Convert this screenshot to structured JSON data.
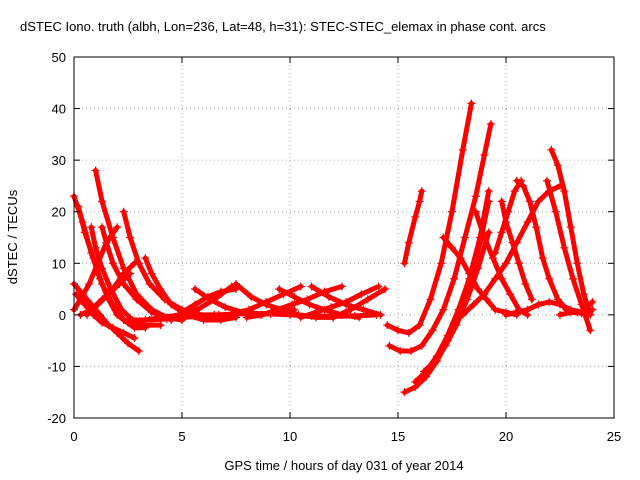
{
  "chart_data": {
    "type": "scatter",
    "title": "dSTEC Iono. truth (albh, Lon=236, Lat=48, h=31): STEC-STEC_elemax in phase cont. arcs",
    "xlabel": "GPS time / hours of day 031 of year 2014",
    "ylabel": "dSTEC  / TECUs",
    "xlim": [
      0,
      25
    ],
    "ylim": [
      -20,
      50
    ],
    "xticks": [
      0,
      5,
      10,
      15,
      20,
      25
    ],
    "yticks": [
      -20,
      -10,
      0,
      10,
      20,
      30,
      40,
      50
    ],
    "grid": true,
    "marker": "plus",
    "series_color": "#ff0000",
    "series": [
      {
        "x": [
          0.0,
          0.4,
          0.8,
          1.2,
          1.6,
          2.0,
          2.5,
          3.0
        ],
        "y": [
          23,
          18,
          12,
          7,
          3,
          0,
          -1.5,
          -2
        ]
      },
      {
        "x": [
          0.0,
          0.4,
          0.8,
          1.2,
          1.6,
          2.0,
          2.5,
          3.0
        ],
        "y": [
          6,
          4,
          2,
          0,
          -2,
          -3.5,
          -5.5,
          -7
        ]
      },
      {
        "x": [
          0.2,
          0.5,
          0.9,
          1.3,
          1.8,
          2.3,
          2.8,
          3.3
        ],
        "y": [
          21,
          16,
          11,
          6,
          2,
          -1,
          -2.5,
          -2.5
        ]
      },
      {
        "x": [
          0.1,
          0.5,
          0.9,
          1.3,
          1.8,
          2.3,
          2.8
        ],
        "y": [
          4,
          2,
          0,
          -1.5,
          -2.5,
          -3.5,
          -4.5
        ]
      },
      {
        "x": [
          0.8,
          1.0,
          1.3,
          1.7,
          2.2,
          2.7,
          3.3,
          4.0
        ],
        "y": [
          17,
          13,
          9,
          5,
          1,
          -1,
          -2,
          -2
        ]
      },
      {
        "x": [
          1.0,
          1.3,
          1.8,
          2.3,
          2.9,
          3.6,
          4.3,
          5.0
        ],
        "y": [
          28,
          22,
          15,
          9,
          4,
          1,
          -0.5,
          -1
        ]
      },
      {
        "x": [
          1.3,
          1.5,
          1.8,
          2.3,
          2.9,
          3.6,
          4.3,
          5.0
        ],
        "y": [
          17,
          14,
          10,
          6,
          3,
          0.5,
          -0.5,
          -1
        ]
      },
      {
        "x": [
          2.3,
          2.6,
          3.0,
          3.5,
          4.2,
          5.0,
          5.8,
          6.5
        ],
        "y": [
          20,
          15,
          10,
          6,
          3,
          1,
          0,
          0
        ]
      },
      {
        "x": [
          3.3,
          3.6,
          4.0,
          4.5,
          5.2,
          6.0,
          6.8,
          7.5
        ],
        "y": [
          11,
          8,
          5,
          2,
          0,
          -1,
          -1,
          -0.5
        ]
      },
      {
        "x": [
          0.0,
          0.3,
          0.7,
          1.1,
          1.5,
          2.0
        ],
        "y": [
          1,
          3,
          6,
          10,
          14,
          17
        ]
      },
      {
        "x": [
          0.3,
          0.8,
          1.3,
          1.8,
          2.3,
          2.8
        ],
        "y": [
          0,
          1,
          3,
          5,
          8,
          10
        ]
      },
      {
        "x": [
          0.6,
          1.1,
          1.6,
          2.1,
          2.6
        ],
        "y": [
          0,
          2,
          4,
          6,
          8
        ]
      },
      {
        "x": [
          2.5,
          3.3,
          4.1,
          4.9,
          5.7,
          6.5,
          7.3
        ],
        "y": [
          -1,
          -1,
          -0.5,
          0,
          1,
          3,
          5.5
        ]
      },
      {
        "x": [
          4.5,
          5.0,
          5.6,
          6.2,
          6.8,
          7.5
        ],
        "y": [
          -1,
          0.5,
          2,
          3.5,
          4.5,
          5
        ]
      },
      {
        "x": [
          5.6,
          6.3,
          7.0,
          7.8,
          8.6,
          9.4,
          10.2
        ],
        "y": [
          5,
          3,
          1.5,
          0.5,
          0,
          0.5,
          1
        ]
      },
      {
        "x": [
          6.5,
          7.3,
          8.1,
          8.9,
          9.7,
          10.5
        ],
        "y": [
          0,
          0,
          1,
          2.5,
          4,
          5.5
        ]
      },
      {
        "x": [
          7.5,
          8.2,
          8.9,
          9.6,
          10.4,
          11.2,
          12.0
        ],
        "y": [
          6,
          3.5,
          2,
          1,
          0,
          -0.5,
          -0.5
        ]
      },
      {
        "x": [
          8.0,
          8.7,
          9.4,
          10.1,
          10.8,
          11.6,
          12.4
        ],
        "y": [
          -0.5,
          0,
          1,
          2,
          3,
          4.5,
          5.5
        ]
      },
      {
        "x": [
          9.5,
          10.2,
          10.9,
          11.6,
          12.4,
          13.2
        ],
        "y": [
          5,
          3.5,
          2,
          1,
          0,
          -0.5
        ]
      },
      {
        "x": [
          10.5,
          11.2,
          11.9,
          12.6,
          13.3,
          14.1
        ],
        "y": [
          -0.5,
          0.5,
          1.5,
          2.5,
          4,
          5.5
        ]
      },
      {
        "x": [
          11.0,
          11.8,
          12.6,
          13.4,
          14.2
        ],
        "y": [
          5.5,
          3.5,
          2,
          1,
          0
        ]
      },
      {
        "x": [
          12.0,
          12.8,
          13.6,
          14.4
        ],
        "y": [
          -0.5,
          1,
          3,
          5
        ]
      },
      {
        "x": [
          3.5,
          4.3,
          5.1,
          5.9,
          6.7,
          7.5,
          8.3,
          9.1,
          10.0,
          11.0,
          12.0,
          13.0,
          14.0
        ],
        "y": [
          -1,
          -0.8,
          -0.5,
          -0.2,
          0,
          0.2,
          0.3,
          0.2,
          0,
          -0.2,
          -0.3,
          -0.2,
          0
        ]
      },
      {
        "x": [
          14.5,
          15.0,
          15.5,
          16.0,
          16.5,
          17.0,
          17.5,
          18.0,
          18.4
        ],
        "y": [
          -2,
          -3,
          -3.5,
          -2,
          3,
          10,
          20,
          32,
          41
        ]
      },
      {
        "x": [
          14.6,
          15.1,
          15.6,
          16.1,
          16.6,
          17.1,
          17.6,
          18.1,
          18.6,
          19.0,
          19.3
        ],
        "y": [
          -6,
          -7,
          -7,
          -6,
          -3,
          1,
          7,
          15,
          23,
          31,
          37
        ]
      },
      {
        "x": [
          15.3,
          15.5,
          15.8,
          16.0,
          16.1
        ],
        "y": [
          10,
          14,
          19,
          22,
          24
        ]
      },
      {
        "x": [
          15.3,
          15.8,
          16.3,
          16.8,
          17.3,
          17.8,
          18.3,
          18.8,
          19.2
        ],
        "y": [
          -15,
          -14,
          -12,
          -9,
          -5,
          0,
          6,
          14,
          22
        ]
      },
      {
        "x": [
          15.8,
          16.3,
          16.8,
          17.3,
          17.8,
          18.3,
          18.8,
          19.2
        ],
        "y": [
          -13,
          -11,
          -8,
          -4,
          1,
          7,
          15,
          24
        ]
      },
      {
        "x": [
          16.2,
          16.7,
          17.2,
          17.7,
          18.2,
          18.7,
          19.2
        ],
        "y": [
          -11,
          -9,
          -6,
          -2,
          3,
          9,
          16
        ]
      },
      {
        "x": [
          17.1,
          17.5,
          17.9,
          18.3,
          18.7,
          19.1,
          19.5,
          20.0,
          20.5
        ],
        "y": [
          15,
          13,
          11,
          8,
          5,
          3,
          1,
          0.5,
          0
        ]
      },
      {
        "x": [
          18.6,
          19.0,
          19.4,
          19.8,
          20.2,
          20.6,
          21.0
        ],
        "y": [
          20,
          15,
          11,
          7,
          4,
          1,
          0
        ]
      },
      {
        "x": [
          19.8,
          20.0,
          20.3,
          20.6,
          20.9,
          21.2
        ],
        "y": [
          22,
          18,
          14,
          10,
          6,
          3
        ]
      },
      {
        "x": [
          20.5,
          20.8,
          21.1,
          21.4,
          21.7,
          22.0,
          22.4,
          22.8,
          23.3,
          23.8
        ],
        "y": [
          26,
          25,
          22,
          17,
          11,
          7,
          3,
          1,
          0.5,
          0
        ]
      },
      {
        "x": [
          22.1,
          22.4,
          22.7,
          23.0,
          23.3,
          23.6,
          23.9
        ],
        "y": [
          32,
          29,
          24,
          17,
          10,
          4,
          0
        ]
      },
      {
        "x": [
          21.9,
          22.3,
          22.7,
          23.1,
          23.5,
          23.9
        ],
        "y": [
          26,
          20,
          13,
          7,
          2,
          -3
        ]
      },
      {
        "x": [
          18.0,
          18.5,
          19.0,
          19.5,
          20.0,
          20.5,
          21.0,
          21.5,
          22.0,
          22.5
        ],
        "y": [
          0,
          2,
          4,
          7,
          10,
          14,
          18,
          22,
          24,
          25
        ]
      },
      {
        "x": [
          19.5,
          19.8,
          20.1,
          20.4,
          20.7
        ],
        "y": [
          12,
          16,
          20,
          24,
          26
        ]
      },
      {
        "x": [
          20.0,
          20.5,
          21.0,
          21.5,
          22.0,
          22.5,
          23.0,
          23.5,
          24.0
        ],
        "y": [
          0,
          0.5,
          1,
          2,
          2.5,
          2,
          1,
          0.5,
          2.5
        ]
      },
      {
        "x": [
          22.5,
          23.0,
          23.5,
          24.0
        ],
        "y": [
          0,
          0.5,
          0.3,
          1
        ]
      }
    ]
  }
}
